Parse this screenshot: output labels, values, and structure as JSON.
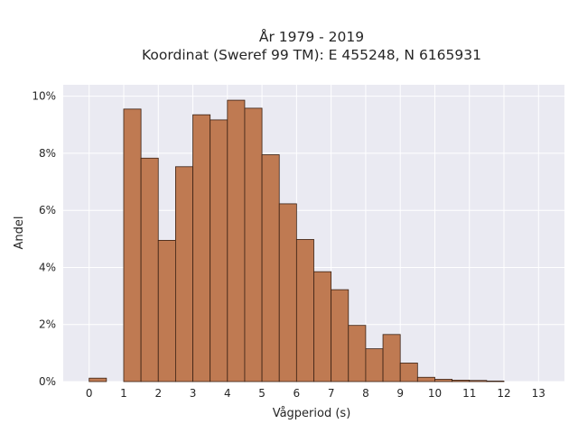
{
  "chart_data": {
    "type": "bar",
    "title": [
      "År 1979 - 2019",
      "Koordinat (Sweref 99 TM): E 455248, N 6165931"
    ],
    "xlabel": "Vågperiod (s)",
    "ylabel": "Andel",
    "xlim": [
      -0.75,
      13.75
    ],
    "ylim": [
      0,
      10.4
    ],
    "bin_width": 0.5,
    "x_ticks": [
      0,
      1,
      2,
      3,
      4,
      5,
      6,
      7,
      8,
      9,
      10,
      11,
      12,
      13
    ],
    "y_ticks": [
      0,
      2,
      4,
      6,
      8,
      10
    ],
    "y_tick_labels": [
      "0%",
      "2%",
      "4%",
      "6%",
      "8%",
      "10%"
    ],
    "bins": [
      {
        "start": 0.0,
        "value": 0.12
      },
      {
        "start": 1.0,
        "value": 9.55
      },
      {
        "start": 1.5,
        "value": 7.83
      },
      {
        "start": 2.0,
        "value": 4.95
      },
      {
        "start": 2.5,
        "value": 7.53
      },
      {
        "start": 3.0,
        "value": 9.35
      },
      {
        "start": 3.5,
        "value": 9.17
      },
      {
        "start": 4.0,
        "value": 9.86
      },
      {
        "start": 4.5,
        "value": 9.58
      },
      {
        "start": 5.0,
        "value": 7.95
      },
      {
        "start": 5.5,
        "value": 6.23
      },
      {
        "start": 6.0,
        "value": 4.98
      },
      {
        "start": 6.5,
        "value": 3.85
      },
      {
        "start": 7.0,
        "value": 3.22
      },
      {
        "start": 7.5,
        "value": 1.97
      },
      {
        "start": 8.0,
        "value": 1.15
      },
      {
        "start": 8.5,
        "value": 1.65
      },
      {
        "start": 9.0,
        "value": 0.65
      },
      {
        "start": 9.5,
        "value": 0.15
      },
      {
        "start": 10.0,
        "value": 0.08
      },
      {
        "start": 10.5,
        "value": 0.05
      },
      {
        "start": 11.0,
        "value": 0.04
      },
      {
        "start": 11.5,
        "value": 0.02
      }
    ],
    "grid": true,
    "colors": {
      "bar_fill": "#bf7a52",
      "bar_edge": "#3a2114",
      "plot_background": "#eaeaf2",
      "grid": "#ffffff"
    }
  }
}
